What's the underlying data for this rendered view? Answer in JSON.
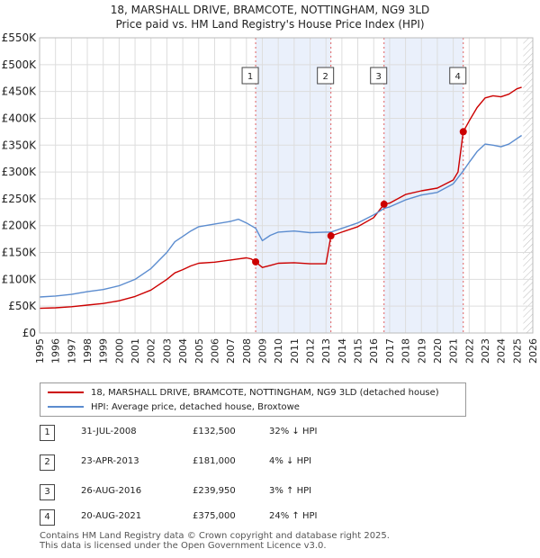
{
  "title_line1": "18, MARSHALL DRIVE, BRAMCOTE, NOTTINGHAM, NG9 3LD",
  "title_line2": "Price paid vs. HM Land Registry's House Price Index (HPI)",
  "chart_data": {
    "type": "line",
    "xlim": [
      1995,
      2026
    ],
    "ylim": [
      0,
      550000
    ],
    "ytick_values": [
      0,
      50000,
      100000,
      150000,
      200000,
      250000,
      300000,
      350000,
      400000,
      450000,
      500000,
      550000
    ],
    "ytick_labels": [
      "£0",
      "£50K",
      "£100K",
      "£150K",
      "£200K",
      "£250K",
      "£300K",
      "£350K",
      "£400K",
      "£450K",
      "£500K",
      "£550K"
    ],
    "xtick_labels": [
      "1995",
      "1996",
      "1997",
      "1998",
      "1999",
      "2000",
      "2001",
      "2002",
      "2003",
      "2004",
      "2005",
      "2006",
      "2007",
      "2008",
      "2009",
      "2010",
      "2011",
      "2012",
      "2013",
      "2014",
      "2015",
      "2016",
      "2017",
      "2018",
      "2019",
      "2020",
      "2021",
      "2022",
      "2023",
      "2024",
      "2025",
      "2026"
    ],
    "shaded_periods": [
      [
        2008.58,
        2013.31
      ],
      [
        2016.65,
        2021.63
      ]
    ],
    "hatched_from": 2025.4,
    "series": [
      {
        "name": "18, MARSHALL DRIVE, BRAMCOTE, NOTTINGHAM, NG9 3LD (detached house)",
        "color": "#cc0000",
        "x": [
          1995.0,
          1996.0,
          1997.0,
          1998.0,
          1999.0,
          2000.0,
          2001.0,
          2002.0,
          2003.0,
          2003.5,
          2004.0,
          2004.5,
          2005.0,
          2006.0,
          2007.0,
          2007.5,
          2008.0,
          2008.3,
          2008.58,
          2009.0,
          2009.5,
          2010.0,
          2011.0,
          2012.0,
          2013.0,
          2013.31,
          2014.0,
          2015.0,
          2016.0,
          2016.65,
          2017.0,
          2018.0,
          2019.0,
          2020.0,
          2021.0,
          2021.3,
          2021.63,
          2022.0,
          2022.5,
          2023.0,
          2023.5,
          2024.0,
          2024.5,
          2025.0,
          2025.3
        ],
        "y": [
          46000,
          47000,
          49000,
          52000,
          55000,
          60000,
          68000,
          80000,
          100000,
          112000,
          118000,
          125000,
          130000,
          132000,
          136000,
          138000,
          140000,
          138000,
          132500,
          122000,
          126000,
          130000,
          131000,
          129000,
          129000,
          181000,
          188000,
          198000,
          215000,
          239950,
          242000,
          258000,
          265000,
          270000,
          285000,
          300000,
          375000,
          395000,
          420000,
          438000,
          442000,
          440000,
          445000,
          455000,
          458000
        ]
      },
      {
        "name": "HPI: Average price, detached house, Broxtowe",
        "color": "#5b8ccf",
        "x": [
          1995.0,
          1996.0,
          1997.0,
          1998.0,
          1999.0,
          2000.0,
          2001.0,
          2002.0,
          2003.0,
          2003.5,
          2004.0,
          2004.5,
          2005.0,
          2006.0,
          2007.0,
          2007.5,
          2008.0,
          2008.58,
          2009.0,
          2009.5,
          2010.0,
          2011.0,
          2012.0,
          2013.0,
          2013.31,
          2014.0,
          2015.0,
          2016.0,
          2016.65,
          2017.0,
          2018.0,
          2019.0,
          2020.0,
          2021.0,
          2021.63,
          2022.0,
          2022.5,
          2023.0,
          2023.5,
          2024.0,
          2024.5,
          2025.0,
          2025.3
        ],
        "y": [
          67000,
          69000,
          72000,
          77000,
          81000,
          88000,
          100000,
          120000,
          150000,
          170000,
          180000,
          190000,
          198000,
          203000,
          208000,
          212000,
          205000,
          195000,
          172000,
          182000,
          188000,
          190000,
          187000,
          188000,
          188000,
          195000,
          205000,
          220000,
          232000,
          235000,
          248000,
          257000,
          262000,
          278000,
          302000,
          318000,
          338000,
          352000,
          350000,
          347000,
          352000,
          362000,
          368000
        ]
      }
    ],
    "markers": [
      {
        "label": "1",
        "x": 2008.58,
        "y": 132500
      },
      {
        "label": "2",
        "x": 2013.31,
        "y": 181000
      },
      {
        "label": "3",
        "x": 2016.65,
        "y": 239950
      },
      {
        "label": "4",
        "x": 2021.63,
        "y": 375000
      }
    ]
  },
  "legend": {
    "property": "18, MARSHALL DRIVE, BRAMCOTE, NOTTINGHAM, NG9 3LD (detached house)",
    "hpi": "HPI: Average price, detached house, Broxtowe",
    "property_color": "#cc0000",
    "hpi_color": "#5b8ccf"
  },
  "sales": [
    {
      "num": "1",
      "date": "31-JUL-2008",
      "price": "£132,500",
      "hpi": "32% ↓ HPI"
    },
    {
      "num": "2",
      "date": "23-APR-2013",
      "price": "£181,000",
      "hpi": "4% ↓ HPI"
    },
    {
      "num": "3",
      "date": "26-AUG-2016",
      "price": "£239,950",
      "hpi": "3% ↑ HPI"
    },
    {
      "num": "4",
      "date": "20-AUG-2021",
      "price": "£375,000",
      "hpi": "24% ↑ HPI"
    }
  ],
  "footer_line1": "Contains HM Land Registry data © Crown copyright and database right 2025.",
  "footer_line2": "This data is licensed under the Open Government Licence v3.0."
}
